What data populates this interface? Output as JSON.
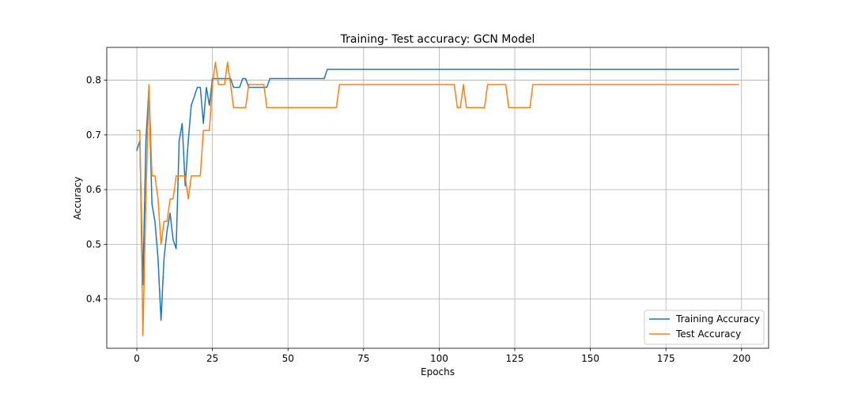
{
  "chart_data": {
    "type": "line",
    "title": "Training- Test accuracy: GCN Model",
    "xlabel": "Epochs",
    "ylabel": "Accuracy",
    "xlim": [
      -9.95,
      208.95
    ],
    "ylim": [
      0.31,
      0.86
    ],
    "xticks": [
      0,
      25,
      50,
      75,
      100,
      125,
      150,
      175,
      200
    ],
    "yticks": [
      0.4,
      0.5,
      0.6,
      0.7,
      0.8
    ],
    "ytick_labels": [
      "0.4",
      "0.5",
      "0.6",
      "0.7",
      "0.8"
    ],
    "grid": true,
    "legend_position": "lower right",
    "series": [
      {
        "name": "Training Accuracy",
        "color": "#1f77b4",
        "points": [
          [
            0,
            0.672
          ],
          [
            1,
            0.689
          ],
          [
            2,
            0.426
          ],
          [
            3,
            0.689
          ],
          [
            4,
            0.787
          ],
          [
            5,
            0.574
          ],
          [
            6,
            0.541
          ],
          [
            7,
            0.475
          ],
          [
            8,
            0.361
          ],
          [
            9,
            0.475
          ],
          [
            10,
            0.525
          ],
          [
            11,
            0.557
          ],
          [
            12,
            0.508
          ],
          [
            13,
            0.492
          ],
          [
            14,
            0.689
          ],
          [
            15,
            0.721
          ],
          [
            16,
            0.607
          ],
          [
            17,
            0.689
          ],
          [
            18,
            0.754
          ],
          [
            19,
            0.77
          ],
          [
            20,
            0.787
          ],
          [
            21,
            0.787
          ],
          [
            22,
            0.721
          ],
          [
            23,
            0.787
          ],
          [
            24,
            0.754
          ],
          [
            25,
            0.803
          ],
          [
            26,
            0.803
          ],
          [
            31,
            0.803
          ],
          [
            32,
            0.787
          ],
          [
            34,
            0.787
          ],
          [
            35,
            0.803
          ],
          [
            36,
            0.803
          ],
          [
            37,
            0.787
          ],
          [
            43,
            0.787
          ],
          [
            44,
            0.803
          ],
          [
            62,
            0.803
          ],
          [
            63,
            0.82
          ],
          [
            199,
            0.82
          ]
        ]
      },
      {
        "name": "Test Accuracy",
        "color": "#ff7f0e",
        "points": [
          [
            0,
            0.708
          ],
          [
            1,
            0.708
          ],
          [
            2,
            0.333
          ],
          [
            3,
            0.583
          ],
          [
            4,
            0.792
          ],
          [
            5,
            0.625
          ],
          [
            6,
            0.625
          ],
          [
            7,
            0.583
          ],
          [
            8,
            0.5
          ],
          [
            9,
            0.542
          ],
          [
            10,
            0.542
          ],
          [
            11,
            0.583
          ],
          [
            12,
            0.583
          ],
          [
            13,
            0.625
          ],
          [
            14,
            0.625
          ],
          [
            15,
            0.625
          ],
          [
            16,
            0.625
          ],
          [
            17,
            0.583
          ],
          [
            18,
            0.625
          ],
          [
            19,
            0.625
          ],
          [
            20,
            0.625
          ],
          [
            21,
            0.625
          ],
          [
            22,
            0.708
          ],
          [
            23,
            0.708
          ],
          [
            24,
            0.708
          ],
          [
            25,
            0.792
          ],
          [
            26,
            0.833
          ],
          [
            27,
            0.792
          ],
          [
            29,
            0.792
          ],
          [
            30,
            0.833
          ],
          [
            31,
            0.792
          ],
          [
            32,
            0.75
          ],
          [
            36,
            0.75
          ],
          [
            37,
            0.792
          ],
          [
            42,
            0.792
          ],
          [
            43,
            0.75
          ],
          [
            66,
            0.75
          ],
          [
            67,
            0.792
          ],
          [
            105,
            0.792
          ],
          [
            106,
            0.75
          ],
          [
            107,
            0.75
          ],
          [
            108,
            0.792
          ],
          [
            109,
            0.75
          ],
          [
            115,
            0.75
          ],
          [
            116,
            0.792
          ],
          [
            122,
            0.792
          ],
          [
            123,
            0.75
          ],
          [
            130,
            0.75
          ],
          [
            131,
            0.792
          ],
          [
            199,
            0.792
          ]
        ]
      }
    ]
  }
}
